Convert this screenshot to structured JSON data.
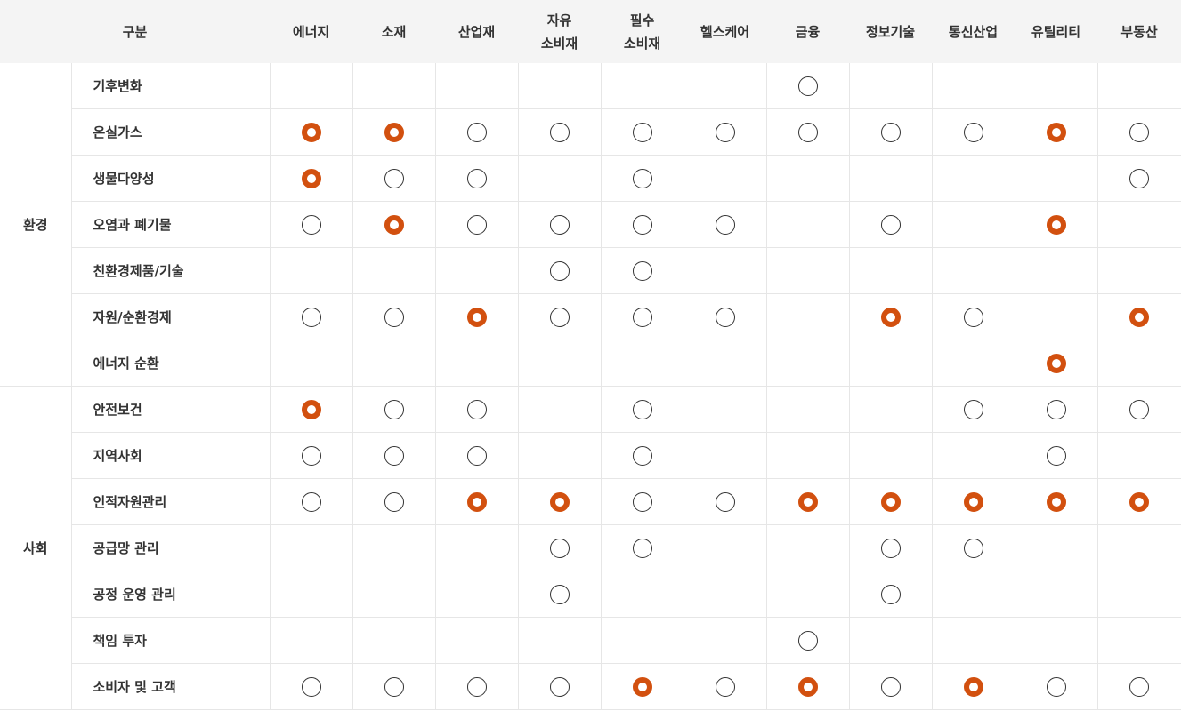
{
  "header": {
    "group_label": "구분",
    "sectors": [
      [
        "에너지"
      ],
      [
        "소재"
      ],
      [
        "산업재"
      ],
      [
        "자유",
        "소비재"
      ],
      [
        "필수",
        "소비재"
      ],
      [
        "헬스케어"
      ],
      [
        "금융"
      ],
      [
        "정보기술"
      ],
      [
        "통신산업"
      ],
      [
        "유틸리티"
      ],
      [
        "부동산"
      ]
    ]
  },
  "legend_colors": {
    "filled": "#d2500f",
    "open": "#333333"
  },
  "groups": [
    {
      "name": "환경",
      "rows": [
        {
          "label": "기후변화",
          "marks": [
            "",
            "",
            "",
            "",
            "",
            "",
            "open",
            "",
            "",
            "",
            ""
          ]
        },
        {
          "label": "온실가스",
          "marks": [
            "filled",
            "filled",
            "open",
            "open",
            "open",
            "open",
            "open",
            "open",
            "open",
            "filled",
            "open"
          ]
        },
        {
          "label": "생물다양성",
          "marks": [
            "filled",
            "open",
            "open",
            "",
            "open",
            "",
            "",
            "",
            "",
            "",
            "open"
          ]
        },
        {
          "label": "오염과 폐기물",
          "marks": [
            "open",
            "filled",
            "open",
            "open",
            "open",
            "open",
            "",
            "open",
            "",
            "filled",
            ""
          ]
        },
        {
          "label": "친환경제품/기술",
          "marks": [
            "",
            "",
            "",
            "open",
            "open",
            "",
            "",
            "",
            "",
            "",
            ""
          ]
        },
        {
          "label": "자원/순환경제",
          "marks": [
            "open",
            "open",
            "filled",
            "open",
            "open",
            "open",
            "",
            "filled",
            "open",
            "",
            "filled"
          ]
        },
        {
          "label": "에너지 순환",
          "marks": [
            "",
            "",
            "",
            "",
            "",
            "",
            "",
            "",
            "",
            "filled",
            ""
          ]
        }
      ]
    },
    {
      "name": "사회",
      "rows": [
        {
          "label": "안전보건",
          "marks": [
            "filled",
            "open",
            "open",
            "",
            "open",
            "",
            "",
            "",
            "open",
            "open",
            "open"
          ]
        },
        {
          "label": "지역사회",
          "marks": [
            "open",
            "open",
            "open",
            "",
            "open",
            "",
            "",
            "",
            "",
            "open",
            ""
          ]
        },
        {
          "label": "인적자원관리",
          "marks": [
            "open",
            "open",
            "filled",
            "filled",
            "open",
            "open",
            "filled",
            "filled",
            "filled",
            "filled",
            "filled"
          ]
        },
        {
          "label": "공급망 관리",
          "marks": [
            "",
            "",
            "",
            "open",
            "open",
            "",
            "",
            "open",
            "open",
            "",
            ""
          ]
        },
        {
          "label": "공정 운영 관리",
          "marks": [
            "",
            "",
            "",
            "open",
            "",
            "",
            "",
            "open",
            "",
            "",
            ""
          ]
        },
        {
          "label": "책임 투자",
          "marks": [
            "",
            "",
            "",
            "",
            "",
            "",
            "open",
            "",
            "",
            "",
            ""
          ]
        },
        {
          "label": "소비자 및 고객",
          "marks": [
            "open",
            "open",
            "open",
            "open",
            "filled",
            "open",
            "filled",
            "open",
            "filled",
            "open",
            "open"
          ]
        }
      ]
    }
  ]
}
